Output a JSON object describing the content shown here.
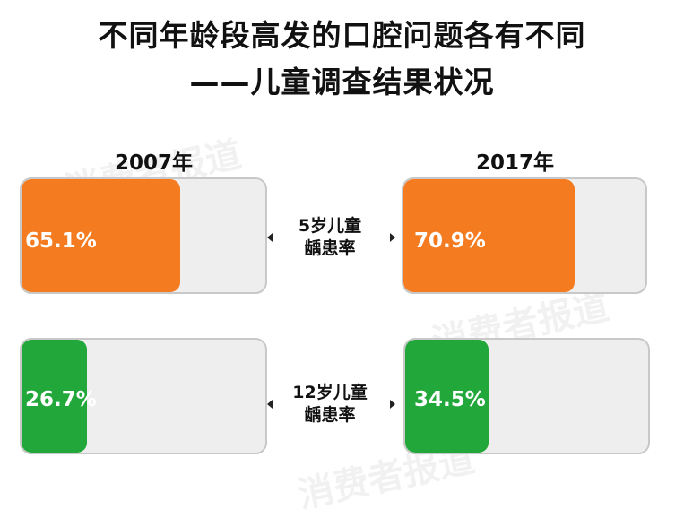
{
  "title": {
    "line1": "不同年龄段高发的口腔问题各有不同",
    "line2": "——儿童调查结果状况"
  },
  "watermark": "消费者报道",
  "chart_data": {
    "type": "bar",
    "title": "不同年龄段高发的口腔问题各有不同 ——儿童调查结果状况",
    "categories": [
      "5岁儿童龋患率",
      "12岁儿童龋患率"
    ],
    "series": [
      {
        "name": "2007年",
        "values": [
          65.1,
          26.7
        ],
        "labels": [
          "65.1%",
          "26.7%"
        ]
      },
      {
        "name": "2017年",
        "values": [
          70.9,
          34.5
        ],
        "labels": [
          "70.9%",
          "34.5%"
        ]
      }
    ],
    "ylim": [
      0,
      100
    ],
    "colors": {
      "row1": "#f47b20",
      "row2": "#22a83a",
      "track": "#eeeeee"
    }
  },
  "rows": [
    {
      "label_line1": "5岁儿童",
      "label_line2": "龋患率"
    },
    {
      "label_line1": "12岁儿童",
      "label_line2": "龋患率"
    }
  ]
}
